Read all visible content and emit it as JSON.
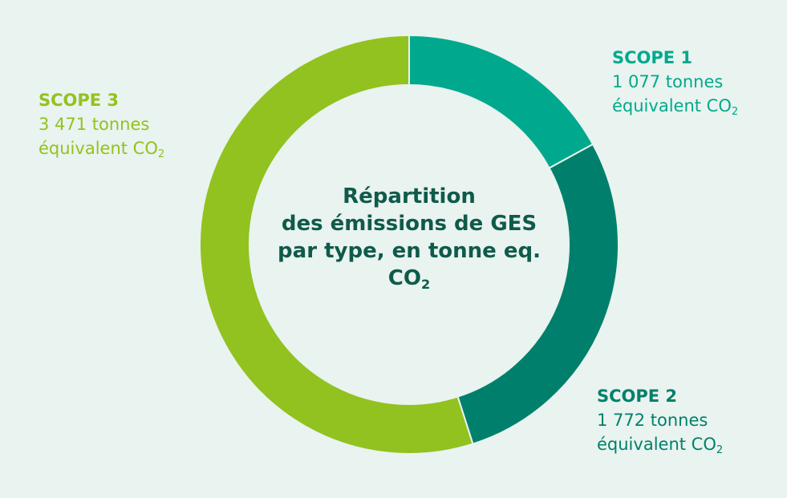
{
  "chart_data": {
    "type": "pie",
    "subtype": "donut",
    "title_lines": [
      "Répartition",
      "des émissions de GES",
      "par type, en tonne eq."
    ],
    "title_co2": "CO",
    "title_co2_sub": "2",
    "categories": [
      "SCOPE 1",
      "SCOPE 2",
      "SCOPE 3"
    ],
    "values": [
      1077,
      1772,
      3471
    ],
    "value_labels": [
      "1 077 tonnes",
      "1 772 tonnes",
      "3 471 tonnes"
    ],
    "unit_text": "équivalent CO",
    "unit_sub": "2",
    "colors": [
      "#00a98d",
      "#00806c",
      "#92c21f"
    ],
    "start_angle_deg": 0,
    "direction": "clockwise"
  },
  "colors": {
    "background": "#e9f3ef",
    "title": "#0f5a4b"
  }
}
